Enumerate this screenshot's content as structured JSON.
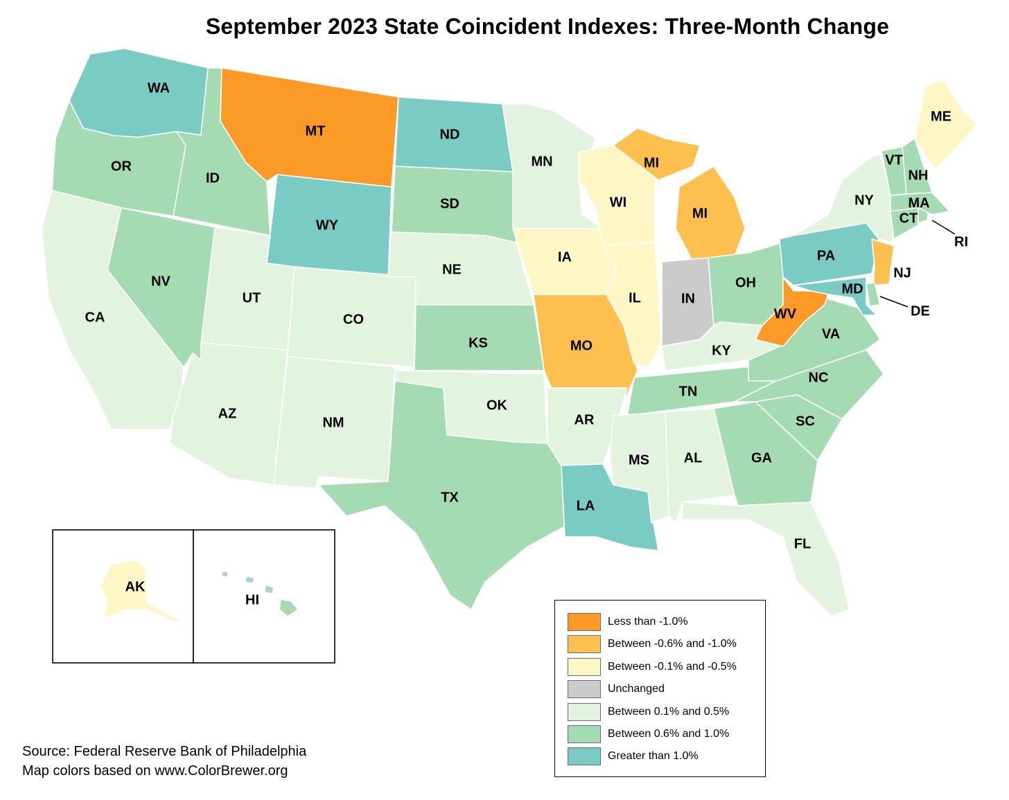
{
  "title": "September 2023 State Coincident Indexes: Three-Month Change",
  "source": {
    "line1": "Source: Federal Reserve Bank of Philadelphia",
    "line2": "Map colors based on www.ColorBrewer.org"
  },
  "legend": [
    {
      "key": "lt_neg1",
      "label": "Less than -1.0%",
      "color": "#fc9a28"
    },
    {
      "key": "neg06_neg10",
      "label": "Between -0.6% and -1.0%",
      "color": "#fdc04f"
    },
    {
      "key": "neg01_neg05",
      "label": "Between -0.1% and -0.5%",
      "color": "#fef7c5"
    },
    {
      "key": "unch",
      "label": "Unchanged",
      "color": "#cbcbcb"
    },
    {
      "key": "p01_p05",
      "label": "Between 0.1% and 0.5%",
      "color": "#e2f3de"
    },
    {
      "key": "p06_p10",
      "label": "Between 0.6% and 1.0%",
      "color": "#a4dbb2"
    },
    {
      "key": "gt1",
      "label": "Greater than 1.0%",
      "color": "#7acbc4"
    }
  ],
  "states": [
    {
      "abbr": "WA",
      "category": "gt1"
    },
    {
      "abbr": "OR",
      "category": "p06_p10"
    },
    {
      "abbr": "CA",
      "category": "p01_p05"
    },
    {
      "abbr": "ID",
      "category": "p06_p10"
    },
    {
      "abbr": "NV",
      "category": "p06_p10"
    },
    {
      "abbr": "MT",
      "category": "lt_neg1"
    },
    {
      "abbr": "WY",
      "category": "gt1"
    },
    {
      "abbr": "UT",
      "category": "p01_p05"
    },
    {
      "abbr": "AZ",
      "category": "p01_p05"
    },
    {
      "abbr": "CO",
      "category": "p01_p05"
    },
    {
      "abbr": "NM",
      "category": "p01_p05"
    },
    {
      "abbr": "ND",
      "category": "gt1"
    },
    {
      "abbr": "SD",
      "category": "p06_p10"
    },
    {
      "abbr": "NE",
      "category": "p01_p05"
    },
    {
      "abbr": "KS",
      "category": "p06_p10"
    },
    {
      "abbr": "OK",
      "category": "p01_p05"
    },
    {
      "abbr": "TX",
      "category": "p06_p10"
    },
    {
      "abbr": "MN",
      "category": "p01_p05"
    },
    {
      "abbr": "IA",
      "category": "neg01_neg05"
    },
    {
      "abbr": "MO",
      "category": "neg06_neg10"
    },
    {
      "abbr": "AR",
      "category": "p01_p05"
    },
    {
      "abbr": "LA",
      "category": "gt1"
    },
    {
      "abbr": "WI",
      "category": "neg01_neg05"
    },
    {
      "abbr": "IL",
      "category": "neg01_neg05"
    },
    {
      "abbr": "MI",
      "category": "neg06_neg10"
    },
    {
      "abbr": "IN",
      "category": "unch"
    },
    {
      "abbr": "OH",
      "category": "p06_p10"
    },
    {
      "abbr": "KY",
      "category": "p01_p05"
    },
    {
      "abbr": "TN",
      "category": "p06_p10"
    },
    {
      "abbr": "MS",
      "category": "p01_p05"
    },
    {
      "abbr": "AL",
      "category": "p01_p05"
    },
    {
      "abbr": "GA",
      "category": "p06_p10"
    },
    {
      "abbr": "FL",
      "category": "p01_p05"
    },
    {
      "abbr": "SC",
      "category": "p06_p10"
    },
    {
      "abbr": "NC",
      "category": "p06_p10"
    },
    {
      "abbr": "VA",
      "category": "p06_p10"
    },
    {
      "abbr": "WV",
      "category": "lt_neg1"
    },
    {
      "abbr": "PA",
      "category": "gt1"
    },
    {
      "abbr": "NY",
      "category": "p01_p05"
    },
    {
      "abbr": "NJ",
      "category": "neg06_neg10"
    },
    {
      "abbr": "DE",
      "category": "p06_p10"
    },
    {
      "abbr": "MD",
      "category": "gt1"
    },
    {
      "abbr": "CT",
      "category": "p06_p10"
    },
    {
      "abbr": "RI",
      "category": "p06_p10"
    },
    {
      "abbr": "MA",
      "category": "p06_p10"
    },
    {
      "abbr": "VT",
      "category": "p06_p10"
    },
    {
      "abbr": "NH",
      "category": "p06_p10"
    },
    {
      "abbr": "ME",
      "category": "neg01_neg05"
    },
    {
      "abbr": "AK",
      "category": "neg01_neg05"
    },
    {
      "abbr": "HI",
      "category": "p06_p10"
    }
  ]
}
